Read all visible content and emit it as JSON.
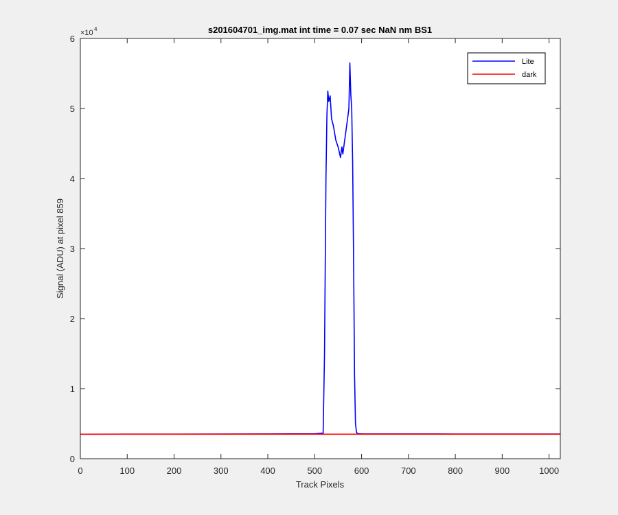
{
  "chart_data": {
    "type": "line",
    "title": "s201604701_img.mat int time = 0.07 sec  NaN nm BS1",
    "xlabel": "Track Pixels",
    "ylabel": "Signal (ADU) at pixel 859",
    "xlim": [
      0,
      1024
    ],
    "ylim": [
      0,
      60000
    ],
    "x_ticks": [
      0,
      100,
      200,
      300,
      400,
      500,
      600,
      700,
      800,
      900,
      1000
    ],
    "y_ticks": [
      0,
      1,
      2,
      3,
      4,
      5,
      6
    ],
    "y_exponent_label": "×10",
    "y_exponent_power": "4",
    "grid": false,
    "legend_position": "top-right",
    "series": [
      {
        "name": "Lite",
        "color": "#0000ff",
        "x": [
          0,
          100,
          200,
          300,
          400,
          500,
          518,
          521,
          524,
          526,
          528,
          530,
          533,
          536,
          540,
          545,
          550,
          555,
          558,
          560,
          563,
          566,
          570,
          573,
          575,
          577,
          579,
          581,
          583,
          585,
          587,
          589,
          591,
          594,
          600,
          700,
          800,
          900,
          1024
        ],
        "y": [
          3500,
          3510,
          3510,
          3520,
          3540,
          3560,
          3650,
          15000,
          40000,
          49000,
          52500,
          51000,
          51800,
          48500,
          47500,
          45500,
          44500,
          43000,
          44500,
          43500,
          45000,
          46500,
          48500,
          50000,
          56500,
          52000,
          50000,
          42000,
          28000,
          12000,
          5000,
          3800,
          3600,
          3560,
          3550,
          3540,
          3530,
          3530,
          3520
        ]
      },
      {
        "name": "dark",
        "color": "#ff0000",
        "x": [
          0,
          1024
        ],
        "y": [
          3500,
          3500
        ]
      }
    ]
  }
}
